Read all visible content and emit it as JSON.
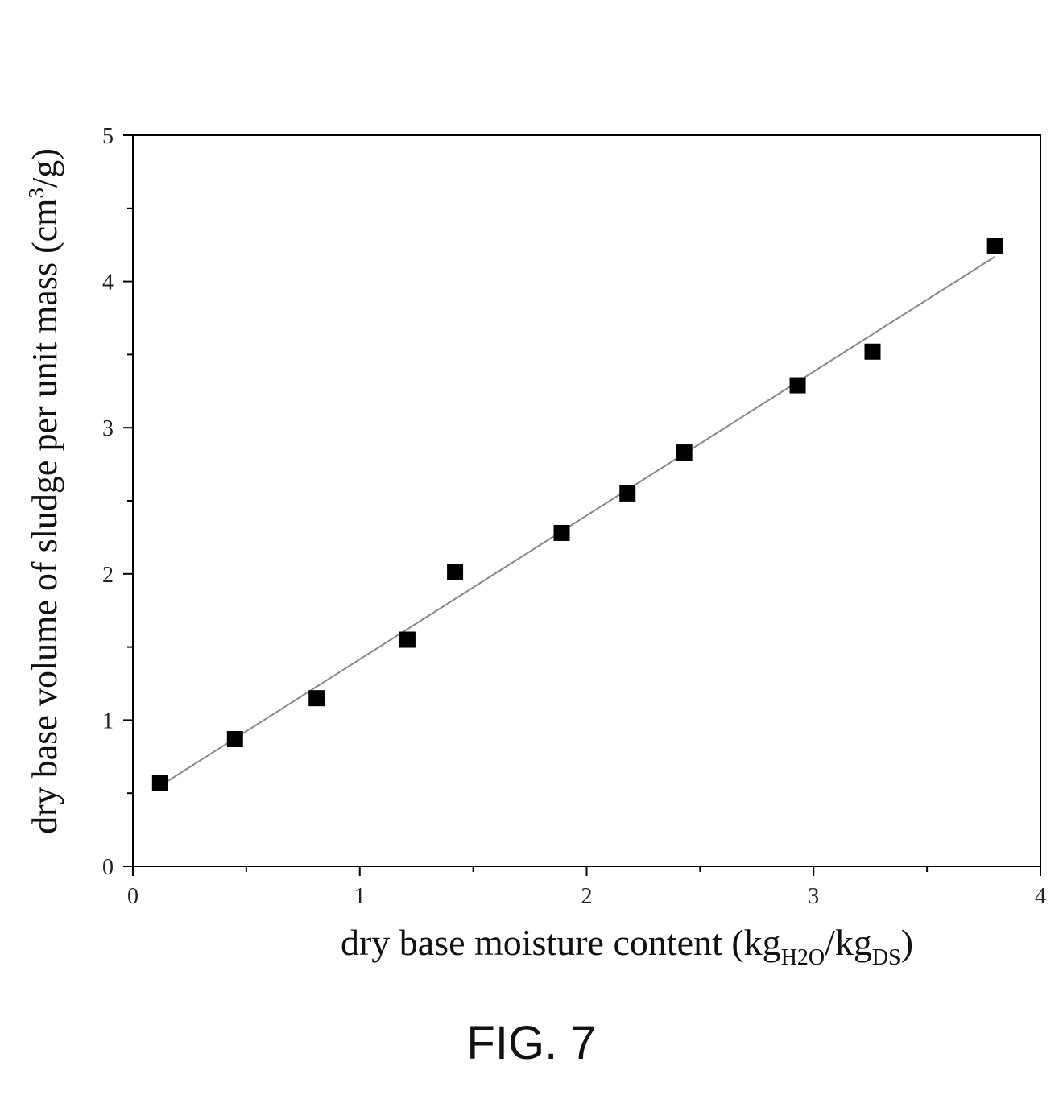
{
  "figure": {
    "caption": "FIG. 7"
  },
  "chart_data": {
    "type": "scatter",
    "x_axis": {
      "label_parts": [
        "dry base moisture content (kg",
        "H2O",
        "/kg",
        "DS",
        ")"
      ],
      "ticks": [
        "0",
        "1",
        "2",
        "3",
        "4"
      ],
      "range": [
        0,
        4
      ]
    },
    "y_axis": {
      "label_parts": [
        "dry base volume of sludge per unit mass (cm",
        "3",
        "/g)"
      ],
      "ticks": [
        "0",
        "1",
        "2",
        "3",
        "4",
        "5"
      ],
      "range": [
        0,
        5
      ]
    },
    "points": [
      {
        "x": 0.12,
        "y": 0.57
      },
      {
        "x": 0.45,
        "y": 0.87
      },
      {
        "x": 0.81,
        "y": 1.15
      },
      {
        "x": 1.21,
        "y": 1.55
      },
      {
        "x": 1.42,
        "y": 2.01
      },
      {
        "x": 1.89,
        "y": 2.28
      },
      {
        "x": 2.18,
        "y": 2.55
      },
      {
        "x": 2.43,
        "y": 2.83
      },
      {
        "x": 2.93,
        "y": 3.29
      },
      {
        "x": 3.26,
        "y": 3.52
      },
      {
        "x": 3.8,
        "y": 4.24
      }
    ],
    "fit_line": {
      "x": [
        0.12,
        3.8
      ],
      "y": [
        0.55,
        4.17
      ]
    },
    "marker": "square",
    "marker_color": "#000000",
    "line_color": "#888888",
    "grid": false,
    "legend": "none"
  }
}
